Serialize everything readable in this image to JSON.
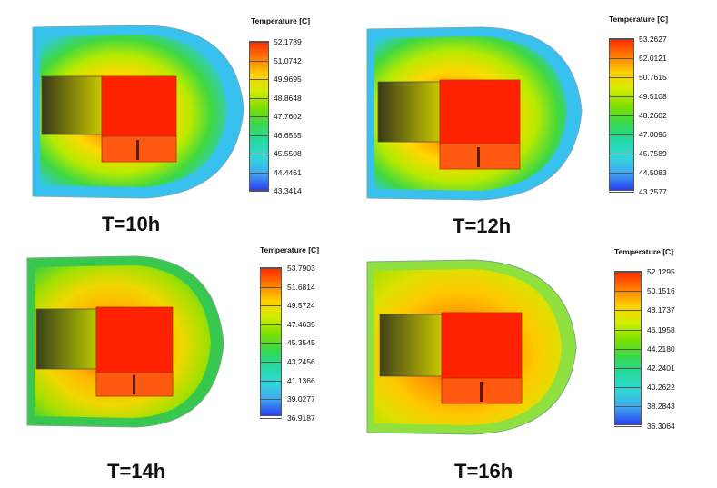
{
  "panels": [
    {
      "id": "t10",
      "caption": "T=10h",
      "colorbar": {
        "title": "Temperature [C]",
        "ticks": [
          "52.1789",
          "51.0742",
          "49.9695",
          "48.8648",
          "47.7602",
          "46.6555",
          "45.5508",
          "44.4461",
          "43.3414"
        ]
      },
      "palette": [
        "#ff2a00",
        "#ff7a00",
        "#ffd000",
        "#d2ee00",
        "#7ee000",
        "#38d84a",
        "#25d8a0",
        "#30d8d8",
        "#3fa8f0",
        "#2a3ff0"
      ]
    },
    {
      "id": "t12",
      "caption": "T=12h",
      "colorbar": {
        "title": "Temperature [C]",
        "ticks": [
          "53.2627",
          "52.0121",
          "50.7615",
          "49.5108",
          "48.2602",
          "47.0096",
          "45.7589",
          "44.5083",
          "43.2577"
        ]
      },
      "palette": [
        "#ff2a00",
        "#ff7a00",
        "#ffd000",
        "#d2ee00",
        "#7ee000",
        "#38d84a",
        "#25d8a0",
        "#30d8d8",
        "#3fa8f0",
        "#2a3ff0"
      ]
    },
    {
      "id": "t14",
      "caption": "T=14h",
      "colorbar": {
        "title": "Temperature [C]",
        "ticks": [
          "53.7903",
          "51.6814",
          "49.5724",
          "47.4635",
          "45.3545",
          "43.2456",
          "41.1366",
          "39.0277",
          "36.9187"
        ]
      },
      "palette": [
        "#ff2a00",
        "#ff7a00",
        "#ffd000",
        "#d2ee00",
        "#7ee000",
        "#38d84a",
        "#25d8a0",
        "#30d8d8",
        "#3fa8f0",
        "#2a3ff0"
      ]
    },
    {
      "id": "t16",
      "caption": "T=16h",
      "colorbar": {
        "title": "Temperature [C]",
        "ticks": [
          "52.1295",
          "50.1516",
          "48.1737",
          "46.1958",
          "44.2180",
          "42.2401",
          "40.2622",
          "38.2843",
          "36.3064"
        ]
      },
      "palette": [
        "#ff2a00",
        "#ff7a00",
        "#ffd000",
        "#d2ee00",
        "#7ee000",
        "#38d84a",
        "#25d8a0",
        "#30d8d8",
        "#3fa8f0",
        "#2a3ff0"
      ]
    }
  ]
}
